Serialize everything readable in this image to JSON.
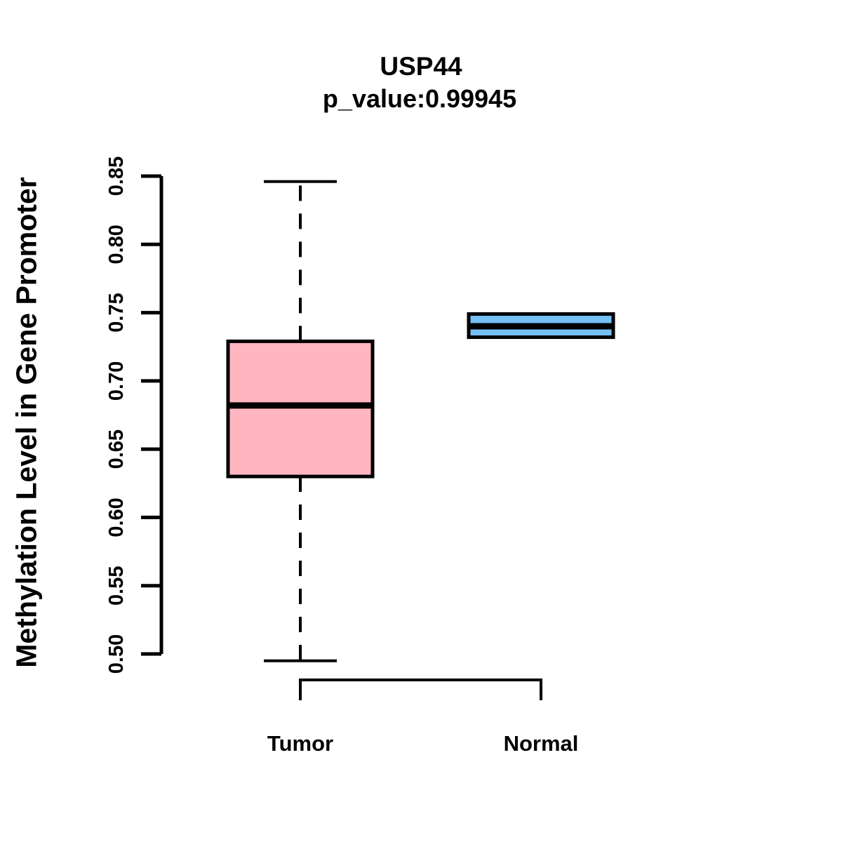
{
  "header": {
    "title": "USP44",
    "subtitle": "p_value:0.99945"
  },
  "chart_data": {
    "type": "boxplot",
    "title": "USP44",
    "subtitle": "p_value:0.99945",
    "xlabel": "",
    "ylabel": "Methylation Level in Gene Promoter",
    "categories": [
      "Tumor",
      "Normal"
    ],
    "ylim": [
      0.5,
      0.85
    ],
    "yticks": [
      0.5,
      0.55,
      0.6,
      0.65,
      0.7,
      0.75,
      0.8,
      0.85
    ],
    "grid": false,
    "legend": "none",
    "series": [
      {
        "name": "Tumor",
        "fill_color": "#FFB6C1",
        "whisker_low": 0.495,
        "q1": 0.63,
        "median": 0.682,
        "q3": 0.729,
        "whisker_high": 0.846,
        "outliers": []
      },
      {
        "name": "Normal",
        "fill_color": "#74BFF4",
        "whisker_low": null,
        "q1": 0.732,
        "median": 0.74,
        "q3": 0.749,
        "whisker_high": null,
        "outliers": []
      }
    ],
    "line_color": "#000000"
  }
}
